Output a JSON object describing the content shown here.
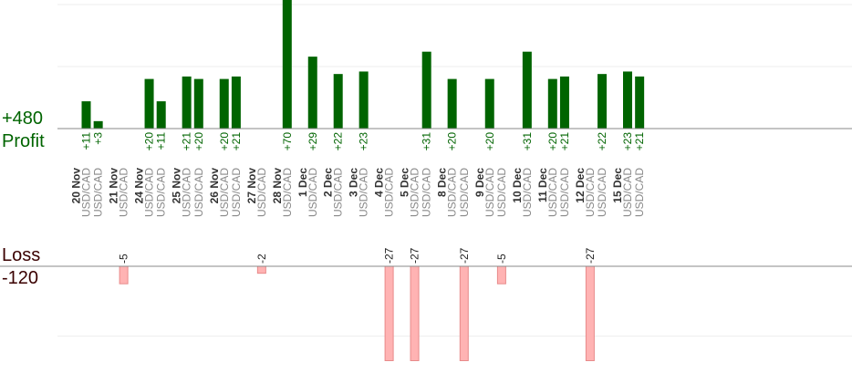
{
  "colors": {
    "profit_bar": "#006400",
    "loss_bar": "#ffb3b3",
    "loss_bar_stroke": "#e88a8a",
    "profit_text": "#006400",
    "loss_text": "#3a0000",
    "baseline": "#888888",
    "grid": "#eeeeee"
  },
  "labels": {
    "profit_value": "+480",
    "profit_word": "Profit",
    "loss_word": "Loss",
    "loss_value": "-120"
  },
  "chart_data": {
    "type": "bar",
    "profit_axis_max": 50,
    "loss_axis_max": 30,
    "profit_grid": [
      25,
      50
    ],
    "loss_grid": [
      20
    ],
    "categories": [
      {
        "date": "20 Nov",
        "symbols": [
          "USD/CAD",
          "USD/CAD"
        ]
      },
      {
        "date": "21 Nov",
        "symbols": [
          "USD/CAD"
        ]
      },
      {
        "date": "24 Nov",
        "symbols": [
          "USD/CAD",
          "USD/CAD"
        ]
      },
      {
        "date": "25 Nov",
        "symbols": [
          "USD/CAD",
          "USD/CAD"
        ]
      },
      {
        "date": "26 Nov",
        "symbols": [
          "USD/CAD",
          "USD/CAD"
        ]
      },
      {
        "date": "27 Nov",
        "symbols": [
          "USD/CAD"
        ]
      },
      {
        "date": "28 Nov",
        "symbols": [
          "USD/CAD"
        ]
      },
      {
        "date": "1 Dec",
        "symbols": [
          "USD/CAD"
        ]
      },
      {
        "date": "2 Dec",
        "symbols": [
          "USD/CAD"
        ]
      },
      {
        "date": "3 Dec",
        "symbols": [
          "USD/CAD"
        ]
      },
      {
        "date": "4 Dec",
        "symbols": [
          "USD/CAD"
        ]
      },
      {
        "date": "5 Dec",
        "symbols": [
          "USD/CAD",
          "USD/CAD"
        ]
      },
      {
        "date": "8 Dec",
        "symbols": [
          "USD/CAD",
          "USD/CAD"
        ]
      },
      {
        "date": "9 Dec",
        "symbols": [
          "USD/CAD",
          "USD/CAD"
        ]
      },
      {
        "date": "10 Dec",
        "symbols": [
          "USD/CAD"
        ]
      },
      {
        "date": "11 Dec",
        "symbols": [
          "USD/CAD",
          "USD/CAD"
        ]
      },
      {
        "date": "12 Dec",
        "symbols": [
          "USD/CAD",
          "USD/CAD"
        ]
      },
      {
        "date": "15 Dec",
        "symbols": [
          "USD/CAD",
          "USD/CAD"
        ]
      }
    ],
    "trades": [
      {
        "label": "+11",
        "value": 11
      },
      {
        "label": "+3",
        "value": 3
      },
      {
        "label": "-5",
        "value": -5
      },
      {
        "label": "+20",
        "value": 20
      },
      {
        "label": "+11",
        "value": 11
      },
      {
        "label": "+21",
        "value": 21
      },
      {
        "label": "+20",
        "value": 20
      },
      {
        "label": "+20",
        "value": 20
      },
      {
        "label": "+21",
        "value": 21
      },
      {
        "label": "-2",
        "value": -2
      },
      {
        "label": "+70",
        "value": 70
      },
      {
        "label": "+29",
        "value": 29
      },
      {
        "label": "+22",
        "value": 22
      },
      {
        "label": "+23",
        "value": 23
      },
      {
        "label": "-27",
        "value": -27
      },
      {
        "label": "-27",
        "value": -27
      },
      {
        "label": "+31",
        "value": 31
      },
      {
        "label": "+20",
        "value": 20
      },
      {
        "label": "-27",
        "value": -27
      },
      {
        "label": "+20",
        "value": 20
      },
      {
        "label": "-5",
        "value": -5
      },
      {
        "label": "+31",
        "value": 31
      },
      {
        "label": "+20",
        "value": 20
      },
      {
        "label": "+21",
        "value": 21
      },
      {
        "label": "-27",
        "value": -27
      },
      {
        "label": "+22",
        "value": 22
      },
      {
        "label": "+23",
        "value": 23
      },
      {
        "label": "+21",
        "value": 21
      }
    ]
  }
}
